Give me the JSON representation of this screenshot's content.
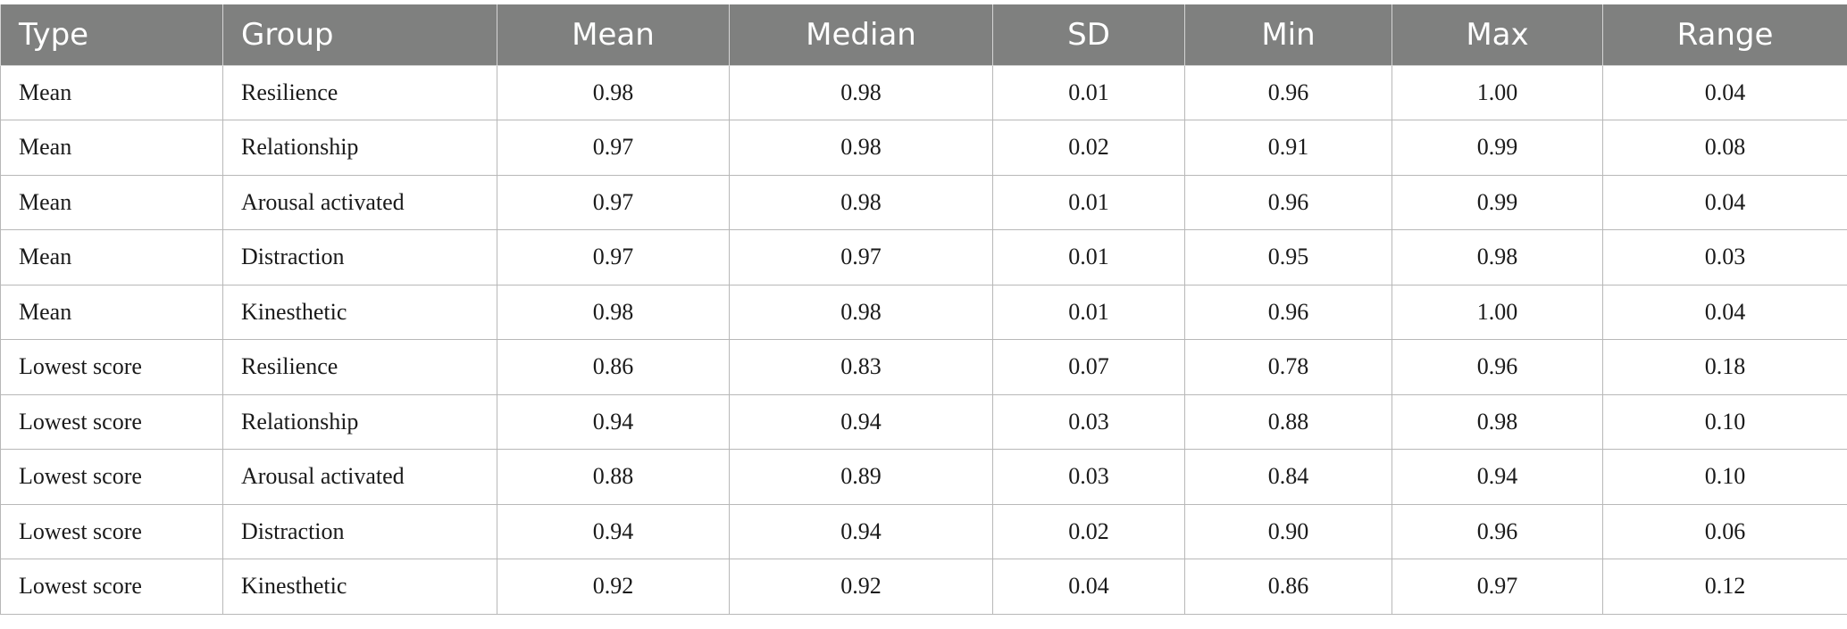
{
  "table": {
    "headers": [
      "Type",
      "Group",
      "Mean",
      "Median",
      "SD",
      "Min",
      "Max",
      "Range"
    ],
    "rows": [
      [
        "Mean",
        "Resilience",
        "0.98",
        "0.98",
        "0.01",
        "0.96",
        "1.00",
        "0.04"
      ],
      [
        "Mean",
        "Relationship",
        "0.97",
        "0.98",
        "0.02",
        "0.91",
        "0.99",
        "0.08"
      ],
      [
        "Mean",
        "Arousal activated",
        "0.97",
        "0.98",
        "0.01",
        "0.96",
        "0.99",
        "0.04"
      ],
      [
        "Mean",
        "Distraction",
        "0.97",
        "0.97",
        "0.01",
        "0.95",
        "0.98",
        "0.03"
      ],
      [
        "Mean",
        "Kinesthetic",
        "0.98",
        "0.98",
        "0.01",
        "0.96",
        "1.00",
        "0.04"
      ],
      [
        "Lowest score",
        "Resilience",
        "0.86",
        "0.83",
        "0.07",
        "0.78",
        "0.96",
        "0.18"
      ],
      [
        "Lowest score",
        "Relationship",
        "0.94",
        "0.94",
        "0.03",
        "0.88",
        "0.98",
        "0.10"
      ],
      [
        "Lowest score",
        "Arousal activated",
        "0.88",
        "0.89",
        "0.03",
        "0.84",
        "0.94",
        "0.10"
      ],
      [
        "Lowest score",
        "Distraction",
        "0.94",
        "0.94",
        "0.02",
        "0.90",
        "0.96",
        "0.06"
      ],
      [
        "Lowest score",
        "Kinesthetic",
        "0.92",
        "0.92",
        "0.04",
        "0.86",
        "0.97",
        "0.12"
      ]
    ]
  },
  "colors": {
    "header_background": "#7f807f",
    "header_text": "#ffffff",
    "grid_lines": "#b8b8b8"
  }
}
